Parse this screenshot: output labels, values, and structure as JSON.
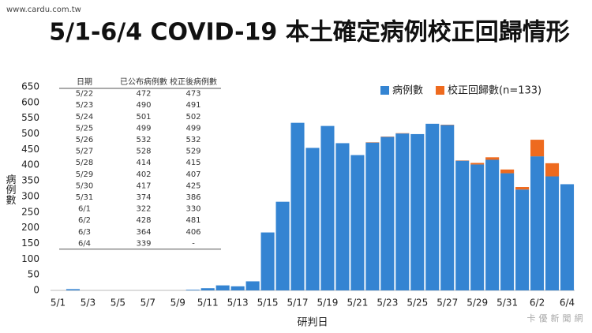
{
  "chart_data": {
    "type": "stacked_bar",
    "title": "5/1-6/4 COVID-19 本土確定病例校正回歸情形",
    "watermark": [
      "www.cardu.com.tw",
      "卡優新聞網"
    ],
    "xlabel": "研判日",
    "ylabel": "病例數",
    "categories": [
      "5/1",
      null,
      "5/3",
      null,
      "5/5",
      null,
      "5/7",
      null,
      "5/9",
      null,
      "5/11",
      null,
      "5/13",
      null,
      "5/15",
      null,
      "5/17",
      null,
      "5/19",
      null,
      "5/21",
      null,
      "5/23",
      null,
      "5/25",
      null,
      "5/27",
      null,
      "5/29",
      null,
      "5/31",
      null,
      "6/2",
      null,
      "6/4"
    ],
    "series": [
      {
        "name": "病例數",
        "color": "#3484d2",
        "values": [
          0,
          4,
          0,
          0,
          0,
          0,
          0,
          0,
          0,
          2,
          7,
          16,
          13,
          29,
          185,
          283,
          535,
          455,
          525,
          470,
          432,
          472,
          490,
          501,
          499,
          532,
          528,
          414,
          402,
          417,
          374,
          322,
          428,
          364,
          339
        ]
      },
      {
        "name": "校正回歸數(n=133)",
        "color": "#ee6a1e",
        "values": [
          0,
          0,
          0,
          0,
          0,
          0,
          0,
          0,
          0,
          0,
          0,
          0,
          0,
          0,
          0,
          0,
          0,
          0,
          0,
          0,
          0,
          1,
          1,
          1,
          0,
          0,
          1,
          1,
          5,
          8,
          12,
          8,
          53,
          42,
          0
        ]
      }
    ],
    "ylim": [
      0,
      650
    ],
    "yticks": [
      0,
      50,
      100,
      150,
      200,
      250,
      300,
      350,
      400,
      450,
      500,
      550,
      600,
      650
    ],
    "grid": false,
    "legend": "top-right",
    "table": {
      "header": [
        "日期",
        "已公布病例數",
        "校正後病例數"
      ],
      "rows": [
        [
          "5/22",
          472,
          473
        ],
        [
          "5/23",
          490,
          491
        ],
        [
          "5/24",
          501,
          502
        ],
        [
          "5/25",
          499,
          499
        ],
        [
          "5/26",
          532,
          532
        ],
        [
          "5/27",
          528,
          529
        ],
        [
          "5/28",
          414,
          415
        ],
        [
          "5/29",
          402,
          407
        ],
        [
          "5/30",
          417,
          425
        ],
        [
          "5/31",
          374,
          386
        ],
        [
          "6/1",
          322,
          330
        ],
        [
          "6/2",
          428,
          481
        ],
        [
          "6/3",
          364,
          406
        ],
        [
          "6/4",
          339,
          "-"
        ]
      ]
    }
  }
}
